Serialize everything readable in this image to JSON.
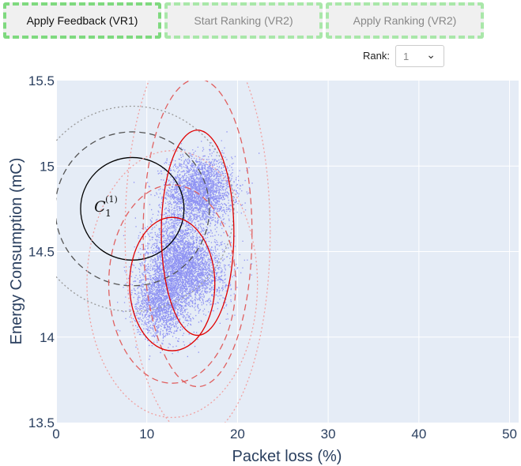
{
  "buttons": [
    {
      "label": "Apply Feedback (VR1)",
      "active": true
    },
    {
      "label": "Start Ranking (VR2)",
      "active": false
    },
    {
      "label": "Apply Ranking (VR2)",
      "active": false
    }
  ],
  "rank": {
    "label": "Rank:",
    "value": "1"
  },
  "chart_data": {
    "type": "scatter",
    "xlabel": "Packet loss (%)",
    "ylabel": "Energy Consumption (mC)",
    "xlim": [
      0,
      51
    ],
    "ylim": [
      13.5,
      15.5
    ],
    "x_ticks": [
      0,
      10,
      20,
      30,
      40,
      50
    ],
    "y_ticks": [
      13.5,
      14,
      14.5,
      15,
      15.5
    ],
    "grid": true,
    "annotation": {
      "text": "C",
      "sub": "1",
      "sup": "(1)",
      "x": 4.2,
      "y": 14.76
    },
    "point_clusters": [
      {
        "cx": 15.8,
        "cy": 14.86,
        "sx": 1.8,
        "sy": 0.1,
        "n": 2600
      },
      {
        "cx": 13.2,
        "cy": 14.5,
        "sx": 1.5,
        "sy": 0.12,
        "n": 1500
      },
      {
        "cx": 14.5,
        "cy": 14.38,
        "sx": 2.2,
        "sy": 0.1,
        "n": 2200
      },
      {
        "cx": 11.6,
        "cy": 14.2,
        "sx": 1.5,
        "sy": 0.1,
        "n": 1700
      }
    ],
    "point_color": "#3a3af0",
    "ellipses": [
      {
        "cx": 8.4,
        "cy": 14.75,
        "rx": 5.7,
        "ry": 0.3,
        "color": "#000000",
        "style": "solid"
      },
      {
        "cx": 8.4,
        "cy": 14.75,
        "rx": 8.5,
        "ry": 0.45,
        "color": "#555555",
        "style": "dashed"
      },
      {
        "cx": 8.4,
        "cy": 14.75,
        "rx": 11.2,
        "ry": 0.6,
        "color": "#999999",
        "style": "dotted"
      },
      {
        "cx": 15.6,
        "cy": 14.61,
        "rx": 4.0,
        "ry": 0.6,
        "color": "#e00000",
        "style": "solid"
      },
      {
        "cx": 15.6,
        "cy": 14.61,
        "rx": 6.0,
        "ry": 0.9,
        "color": "#e06060",
        "style": "dashed"
      },
      {
        "cx": 15.6,
        "cy": 14.61,
        "rx": 8.0,
        "ry": 1.2,
        "color": "#f0a0a0",
        "style": "dotted"
      },
      {
        "cx": 12.8,
        "cy": 14.31,
        "rx": 4.7,
        "ry": 0.39,
        "color": "#e00000",
        "style": "solid"
      },
      {
        "cx": 12.8,
        "cy": 14.31,
        "rx": 7.0,
        "ry": 0.58,
        "color": "#e06060",
        "style": "dashed"
      },
      {
        "cx": 12.8,
        "cy": 14.31,
        "rx": 9.4,
        "ry": 0.78,
        "color": "#f0a0a0",
        "style": "dotted"
      }
    ]
  }
}
